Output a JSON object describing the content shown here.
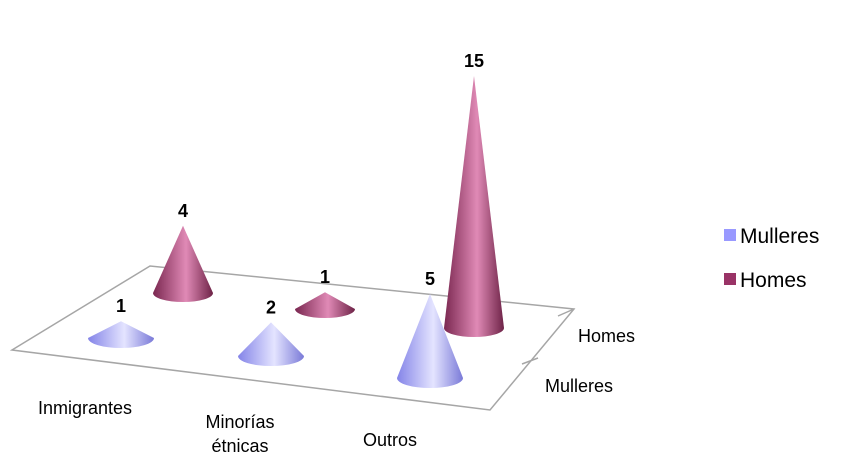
{
  "chart_data": {
    "type": "bar",
    "style": "3d-cone",
    "categories": [
      "Inmigrantes",
      "Minorías étnicas",
      "Outros"
    ],
    "category_lines": [
      [
        "Inmigrantes"
      ],
      [
        "Minorías",
        "étnicas"
      ],
      [
        "Outros"
      ]
    ],
    "depth_labels": [
      "Homes",
      "Mulleres"
    ],
    "series": [
      {
        "name": "Mulleres",
        "values": [
          1,
          2,
          5
        ],
        "color": "#9999ff"
      },
      {
        "name": "Homes",
        "values": [
          4,
          1,
          15
        ],
        "color": "#993366"
      }
    ],
    "legend": {
      "position": "right",
      "entries": [
        "Mulleres",
        "Homes"
      ]
    },
    "data_labels": true,
    "grid": false,
    "title": "",
    "xlabel": "",
    "ylabel": ""
  }
}
